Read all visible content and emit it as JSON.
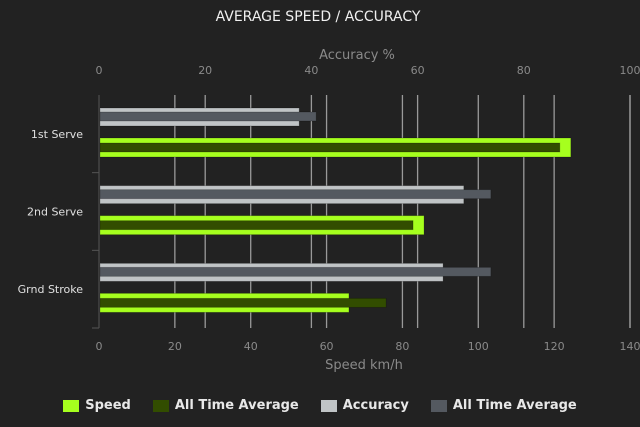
{
  "chart_data": {
    "type": "bar",
    "orientation": "horizontal",
    "title": "AVERAGE SPEED / ACCURACY",
    "categories": [
      "1st Serve",
      "2nd Serve",
      "Grnd Stroke"
    ],
    "top_axis": {
      "label": "Accuracy %",
      "range": [
        0,
        100
      ],
      "ticks": [
        0,
        20,
        40,
        60,
        80,
        100
      ]
    },
    "bottom_axis": {
      "label": "Speed km/h",
      "range": [
        0,
        140
      ],
      "ticks": [
        0,
        20,
        40,
        60,
        80,
        100,
        120,
        140
      ]
    },
    "grid": true,
    "legend_position": "bottom",
    "series": [
      {
        "name": "Speed",
        "axis": "bottom",
        "color": "#a6ff1e",
        "values": [
          124.4,
          85.7,
          65.9
        ]
      },
      {
        "name": "All Time Average",
        "axis": "bottom",
        "color": "#324d00",
        "values": [
          121.5,
          82.8,
          75.7
        ]
      },
      {
        "name": "Accuracy",
        "axis": "top",
        "color": "#c0c4c6",
        "values": [
          37.7,
          68.7,
          64.8
        ]
      },
      {
        "name": "All Time Average",
        "axis": "top",
        "color": "#545960",
        "values": [
          40.9,
          73.8,
          73.8
        ]
      }
    ]
  }
}
